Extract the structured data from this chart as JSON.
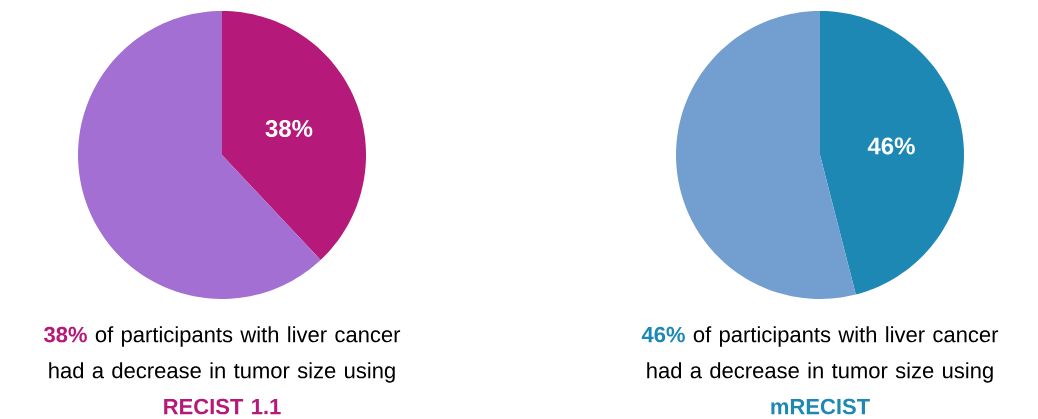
{
  "chart_data": [
    {
      "type": "pie",
      "categories": [
        null,
        null
      ],
      "values": [
        38,
        62
      ],
      "colors": [
        "#b5197a",
        "#a36fd3"
      ],
      "value_labels": [
        "38%",
        null
      ],
      "annotations": [
        "38%",
        "of participants with liver cancer had a decrease in tumor size using",
        "RECIST 1.1"
      ]
    },
    {
      "type": "pie",
      "categories": [
        null,
        null
      ],
      "values": [
        46,
        54
      ],
      "colors": [
        "#1e88b4",
        "#739fd0"
      ],
      "value_labels": [
        "46%",
        null
      ],
      "annotations": [
        "46%",
        "of participants with liver cancer had a decrease in tumor size using",
        "mRECIST"
      ]
    }
  ]
}
